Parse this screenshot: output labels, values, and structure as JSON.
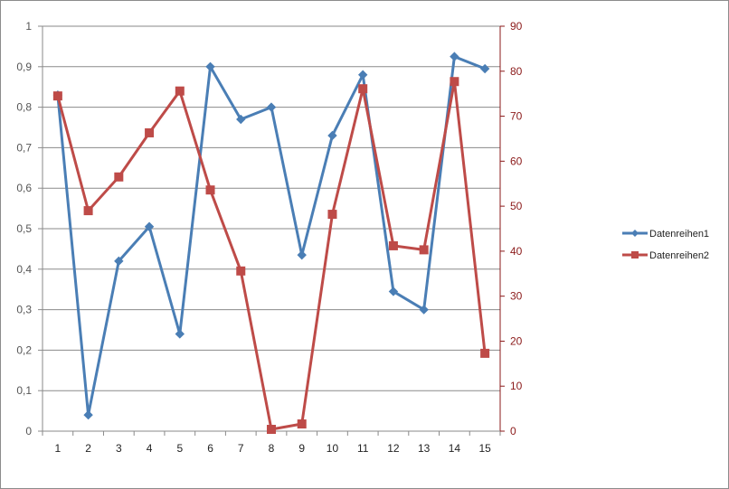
{
  "chart_data": {
    "type": "line",
    "title": "",
    "xlabel": "",
    "ylabel": "",
    "categories": [
      "1",
      "2",
      "3",
      "4",
      "5",
      "6",
      "7",
      "8",
      "9",
      "10",
      "11",
      "12",
      "13",
      "14",
      "15"
    ],
    "y_left": {
      "range": [
        0,
        1
      ],
      "ticks": [
        0,
        0.1,
        0.2,
        0.3,
        0.4,
        0.5,
        0.6,
        0.7,
        0.8,
        0.9,
        1
      ],
      "tick_labels": [
        "0",
        "0,1",
        "0,2",
        "0,3",
        "0,4",
        "0,5",
        "0,6",
        "0,7",
        "0,8",
        "0,9",
        "1"
      ]
    },
    "y_right": {
      "range": [
        0,
        90
      ],
      "ticks": [
        0,
        10,
        20,
        30,
        40,
        50,
        60,
        70,
        80,
        90
      ],
      "tick_labels": [
        "0",
        "10",
        "20",
        "30",
        "40",
        "50",
        "60",
        "70",
        "80",
        "90"
      ]
    },
    "grid": true,
    "legend": "right",
    "series": [
      {
        "name": "Datenreihen1",
        "axis": "left",
        "color": "#4a7eb5",
        "marker": "diamond",
        "values": [
          0.83,
          0.04,
          0.42,
          0.505,
          0.24,
          0.9,
          0.77,
          0.8,
          0.435,
          0.73,
          0.88,
          0.345,
          0.3,
          0.925,
          0.895
        ]
      },
      {
        "name": "Datenreihen2",
        "axis": "right",
        "color": "#be4b48",
        "marker": "square",
        "values": [
          74.5,
          49,
          56.5,
          66.3,
          75.6,
          53.6,
          35.6,
          0.4,
          1.6,
          48.2,
          76.1,
          41.2,
          40.3,
          77.7,
          17.3
        ]
      }
    ]
  }
}
